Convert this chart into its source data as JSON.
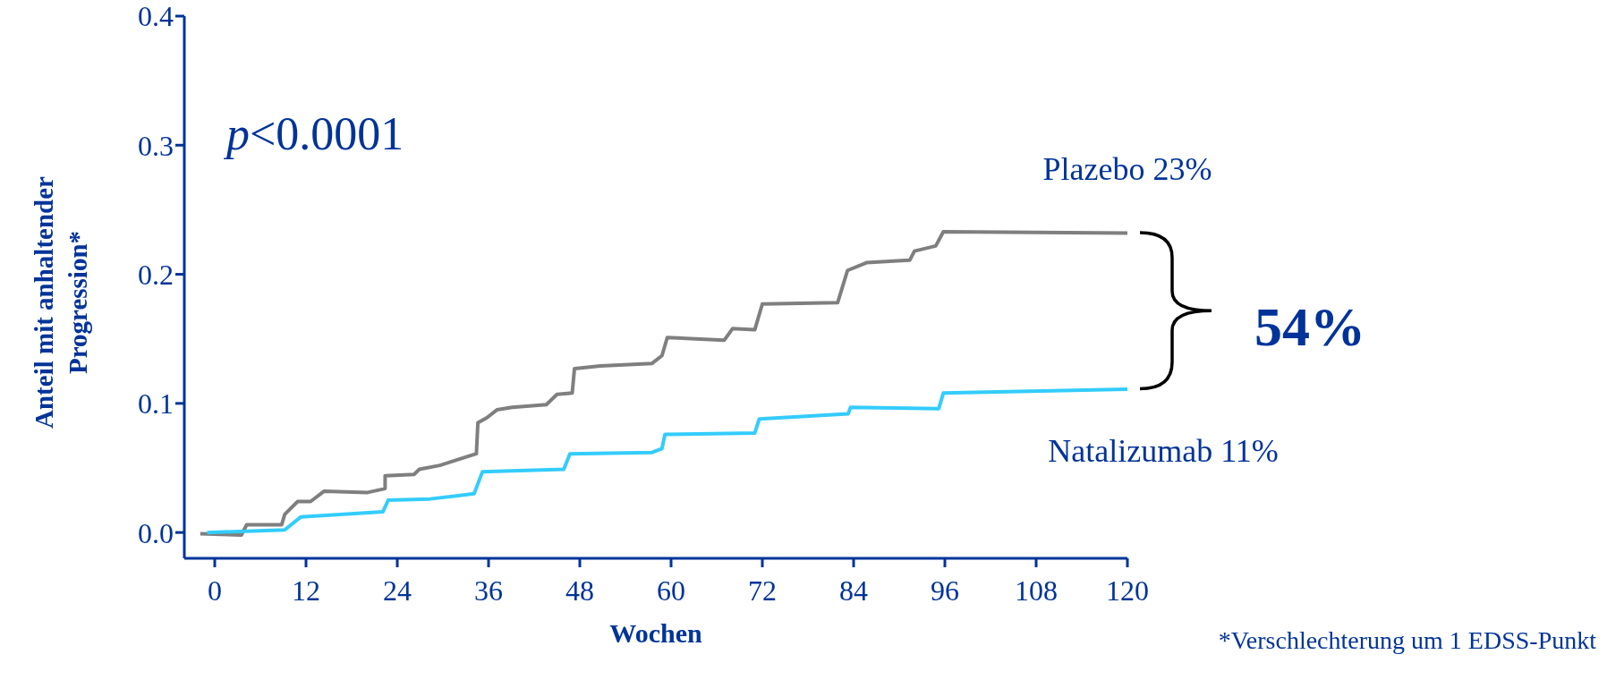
{
  "chart_data": {
    "type": "line",
    "ylabel": "Anteil mit anhaltender Progression*",
    "xlabel": "Wochen",
    "xlim": [
      -4,
      120
    ],
    "xticks": [
      0,
      12,
      24,
      36,
      48,
      60,
      72,
      84,
      96,
      108,
      120
    ],
    "ylim": [
      -0.02,
      0.4
    ],
    "yticks": [
      {
        "value": 0,
        "label": "0.0"
      },
      0.1,
      0.2,
      0.3,
      0.4
    ],
    "series": [
      {
        "name": "Plazebo 23%",
        "color": "#7f7f7f",
        "x": [
          -1.9,
          3.5,
          4.2,
          8.8,
          9.2,
          10.9,
          12.6,
          14.4,
          20.1,
          22.4,
          22.4,
          26.2,
          26.9,
          29.6,
          31.7,
          34.4,
          34.6,
          35.8,
          37.1,
          39.1,
          43.6,
          45,
          47,
          47.3,
          50.7,
          57.5,
          58.8,
          59.5,
          67,
          68.1,
          71,
          72,
          81.9,
          83.2,
          85.7,
          91.4,
          92,
          94.8,
          95.8,
          120
        ],
        "values": [
          -0.001,
          -0.002,
          0.006,
          0.006,
          0.014,
          0.024,
          0.024,
          0.032,
          0.031,
          0.034,
          0.044,
          0.045,
          0.049,
          0.052,
          0.056,
          0.061,
          0.085,
          0.089,
          0.095,
          0.097,
          0.099,
          0.107,
          0.108,
          0.127,
          0.129,
          0.131,
          0.137,
          0.151,
          0.149,
          0.158,
          0.157,
          0.177,
          0.178,
          0.203,
          0.209,
          0.211,
          0.218,
          0.222,
          0.233,
          0.232
        ]
      },
      {
        "name": "Natalizumab 11%",
        "color": "#33ccff",
        "x": [
          -1,
          9.2,
          11.3,
          22.1,
          22.8,
          28.3,
          34.1,
          35.2,
          45.9,
          46.7,
          57.5,
          58.8,
          59.2,
          71,
          71.6,
          83.3,
          83.6,
          95.2,
          95.8,
          120
        ],
        "values": [
          0,
          0.002,
          0.012,
          0.016,
          0.025,
          0.026,
          0.03,
          0.047,
          0.049,
          0.061,
          0.062,
          0.065,
          0.076,
          0.077,
          0.088,
          0.092,
          0.097,
          0.096,
          0.108,
          0.111
        ]
      }
    ],
    "annotations": [
      "p<0.0001",
      "54%",
      "*Verschlechterung um 1 EDSS-Punkt"
    ]
  }
}
